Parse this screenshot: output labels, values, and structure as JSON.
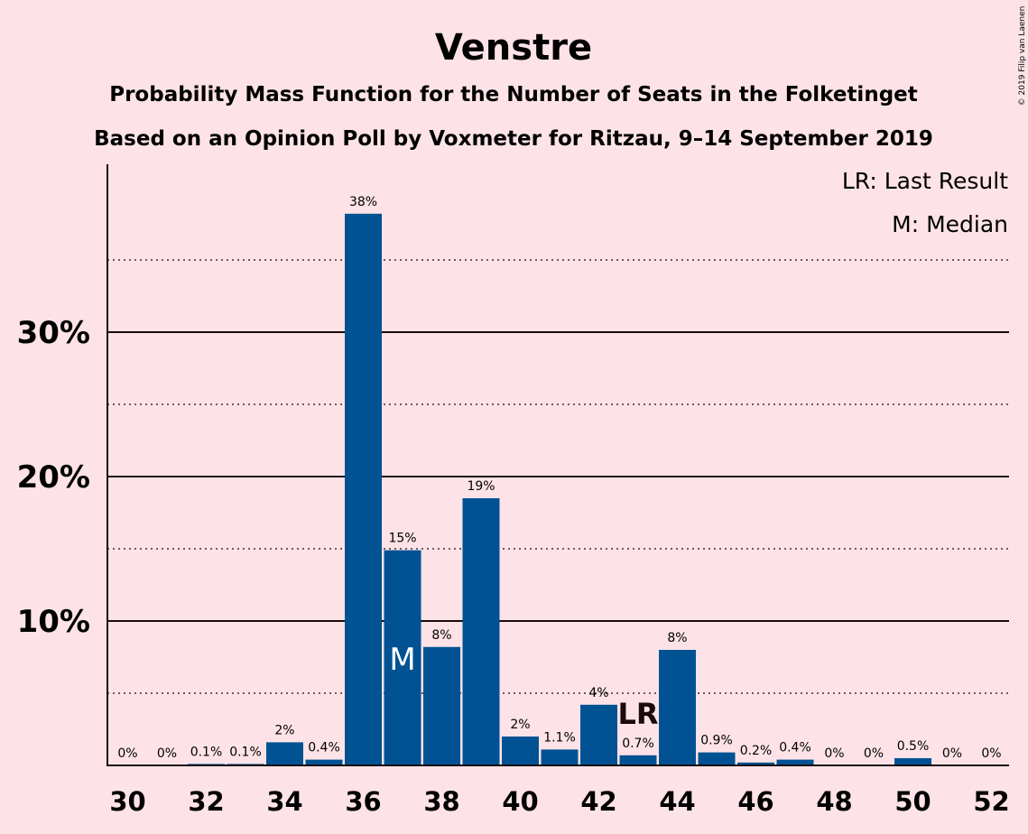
{
  "chart_data": {
    "type": "bar",
    "title": "Venstre",
    "subtitle_lines": [
      "Probability Mass Function for the Number of Seats in the Folketinget",
      "Based on an Opinion Poll by Voxmeter for Ritzau, 9–14 September 2019"
    ],
    "copyright": "© 2019 Filip van Laenen",
    "legend": {
      "lr": "LR: Last Result",
      "m": "M: Median",
      "placement": "top-right"
    },
    "categories": [
      30,
      31,
      32,
      33,
      34,
      35,
      36,
      37,
      38,
      39,
      40,
      41,
      42,
      43,
      44,
      45,
      46,
      47,
      48,
      49,
      50,
      51,
      52
    ],
    "values": [
      0,
      0,
      0.1,
      0.1,
      1.6,
      0.4,
      38.2,
      14.9,
      8.2,
      18.5,
      2.0,
      1.1,
      4.2,
      0.7,
      8.0,
      0.9,
      0.2,
      0.4,
      0,
      0,
      0.5,
      0,
      0
    ],
    "labels": [
      "0%",
      "0%",
      "0.1%",
      "0.1%",
      "2%",
      "0.4%",
      "38%",
      "15%",
      "8%",
      "19%",
      "2%",
      "1.1%",
      "4%",
      "0.7%",
      "8%",
      "0.9%",
      "0.2%",
      "0.4%",
      "0%",
      "0%",
      "0.5%",
      "0%",
      "0%"
    ],
    "x_tick_labels": [
      "30",
      "32",
      "34",
      "36",
      "38",
      "40",
      "42",
      "44",
      "46",
      "48",
      "50",
      "52"
    ],
    "y_tick_labels": [
      "10%",
      "20%",
      "30%"
    ],
    "ylim": [
      0,
      41.5
    ],
    "median_seat": 37,
    "median_marker": "M",
    "last_result_seat": 43,
    "last_result_marker": "LR",
    "colors": {
      "bar": "#005293",
      "background": "#fde3e7",
      "text": "#1a0a0a"
    }
  }
}
